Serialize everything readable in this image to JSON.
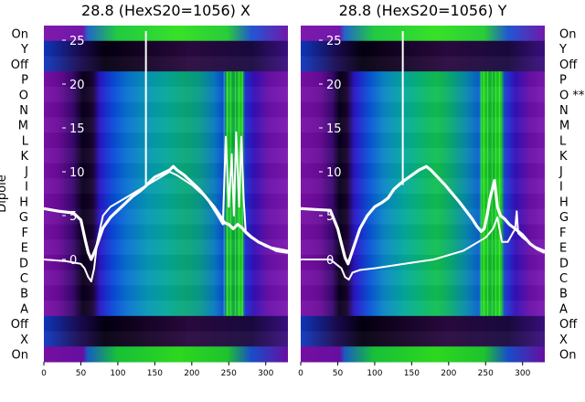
{
  "chart_data": [
    {
      "type": "heatmap",
      "title": "28.8 (HexS20=1056) X",
      "ylabel": "Dipole",
      "xlim": [
        0,
        330
      ],
      "x_ticks": [
        0,
        50,
        100,
        150,
        200,
        250,
        300
      ],
      "y_ticks": [
        "On",
        "Y",
        "Off",
        "P",
        "O",
        "N",
        "M",
        "L",
        "K",
        "J",
        "I",
        "H",
        "G",
        "F",
        "E",
        "D",
        "C",
        "B",
        "A",
        "Off",
        "X",
        "On"
      ],
      "inner_ticks": [
        "25",
        "20",
        "15",
        "10",
        "5",
        "0"
      ],
      "series": [
        {
          "values": [
            [
              0,
              5.8
            ],
            [
              20,
              5.5
            ],
            [
              40,
              5.3
            ],
            [
              50,
              4.5
            ],
            [
              56,
              2.2
            ],
            [
              60,
              0.8
            ],
            [
              64,
              0
            ],
            [
              70,
              1.2
            ],
            [
              80,
              3.6
            ],
            [
              90,
              4.8
            ],
            [
              100,
              5.6
            ],
            [
              110,
              6.4
            ],
            [
              120,
              7.2
            ],
            [
              130,
              7.8
            ],
            [
              138,
              8.4
            ],
            [
              145,
              9.0
            ],
            [
              150,
              9.4
            ],
            [
              160,
              9.8
            ],
            [
              170,
              10.2
            ],
            [
              175,
              10.6
            ],
            [
              180,
              10.2
            ],
            [
              190,
              9.6
            ],
            [
              200,
              8.8
            ],
            [
              210,
              8.0
            ],
            [
              220,
              7.0
            ],
            [
              230,
              6.0
            ],
            [
              238,
              5.0
            ],
            [
              244,
              4.2
            ],
            [
              250,
              4.0
            ],
            [
              256,
              3.5
            ],
            [
              262,
              4.0
            ],
            [
              268,
              3.6
            ],
            [
              272,
              3.2
            ],
            [
              280,
              2.6
            ],
            [
              290,
              2.0
            ],
            [
              300,
              1.6
            ],
            [
              315,
              1.0
            ],
            [
              330,
              0.8
            ]
          ]
        },
        {
          "values": [
            [
              0,
              0
            ],
            [
              30,
              -0.2
            ],
            [
              50,
              -0.5
            ],
            [
              55,
              -1
            ],
            [
              60,
              -2
            ],
            [
              64,
              -2.5
            ],
            [
              68,
              -1
            ],
            [
              72,
              2
            ],
            [
              80,
              5
            ],
            [
              90,
              6
            ],
            [
              100,
              6.5
            ],
            [
              120,
              7.5
            ],
            [
              140,
              8.5
            ],
            [
              160,
              9.5
            ],
            [
              170,
              10
            ],
            [
              180,
              9.6
            ],
            [
              200,
              8.5
            ],
            [
              220,
              7
            ],
            [
              235,
              5
            ],
            [
              242,
              4
            ],
            [
              246,
              14
            ],
            [
              250,
              6
            ],
            [
              254,
              12
            ],
            [
              257,
              5
            ],
            [
              260,
              14.5
            ],
            [
              264,
              6
            ],
            [
              267,
              14
            ],
            [
              270,
              7
            ],
            [
              273,
              3
            ],
            [
              280,
              2.5
            ],
            [
              300,
              1.5
            ],
            [
              330,
              1
            ]
          ]
        }
      ]
    },
    {
      "type": "heatmap",
      "title": "28.8 (HexS20=1056) Y",
      "annotation": "**",
      "xlim": [
        0,
        330
      ],
      "x_ticks": [
        0,
        50,
        100,
        150,
        200,
        250,
        300
      ],
      "y_ticks": [
        "On",
        "Y",
        "Off",
        "P",
        "O **",
        "N",
        "M",
        "L",
        "K",
        "J",
        "I",
        "H",
        "G",
        "F",
        "E",
        "D",
        "C",
        "B",
        "A",
        "Off",
        "X",
        "On"
      ],
      "inner_ticks": [
        "25",
        "20",
        "15",
        "10",
        "5",
        "0"
      ],
      "series": [
        {
          "values": [
            [
              0,
              5.8
            ],
            [
              20,
              5.7
            ],
            [
              40,
              5.6
            ],
            [
              50,
              3.5
            ],
            [
              56,
              1.5
            ],
            [
              60,
              0.2
            ],
            [
              64,
              -0.5
            ],
            [
              70,
              1.0
            ],
            [
              80,
              3.5
            ],
            [
              90,
              5.0
            ],
            [
              100,
              6.0
            ],
            [
              110,
              6.5
            ],
            [
              118,
              7.0
            ],
            [
              126,
              8.0
            ],
            [
              134,
              8.6
            ],
            [
              140,
              9.0
            ],
            [
              150,
              9.6
            ],
            [
              160,
              10.2
            ],
            [
              170,
              10.6
            ],
            [
              176,
              10.2
            ],
            [
              185,
              9.4
            ],
            [
              195,
              8.5
            ],
            [
              205,
              7.5
            ],
            [
              215,
              6.5
            ],
            [
              225,
              5.4
            ],
            [
              232,
              4.6
            ],
            [
              238,
              3.8
            ],
            [
              244,
              3.2
            ],
            [
              248,
              3.5
            ],
            [
              252,
              5.0
            ],
            [
              256,
              7.0
            ],
            [
              262,
              9.0
            ],
            [
              266,
              6.0
            ],
            [
              270,
              5.0
            ],
            [
              276,
              4.6
            ],
            [
              282,
              4.0
            ],
            [
              290,
              3.5
            ],
            [
              300,
              2.8
            ],
            [
              310,
              1.8
            ],
            [
              320,
              1.2
            ],
            [
              330,
              0.8
            ]
          ]
        },
        {
          "values": [
            [
              0,
              0
            ],
            [
              40,
              0
            ],
            [
              55,
              -1
            ],
            [
              60,
              -2
            ],
            [
              65,
              -2.3
            ],
            [
              70,
              -1.5
            ],
            [
              80,
              -1.2
            ],
            [
              100,
              -1
            ],
            [
              140,
              -0.5
            ],
            [
              180,
              0
            ],
            [
              220,
              1
            ],
            [
              240,
              2
            ],
            [
              250,
              2.5
            ],
            [
              260,
              3.5
            ],
            [
              266,
              4.8
            ],
            [
              272,
              2
            ],
            [
              280,
              2
            ],
            [
              290,
              3.5
            ],
            [
              292,
              5.5
            ],
            [
              294,
              3
            ],
            [
              300,
              2.5
            ],
            [
              315,
              1.5
            ],
            [
              330,
              1
            ]
          ]
        }
      ]
    }
  ]
}
